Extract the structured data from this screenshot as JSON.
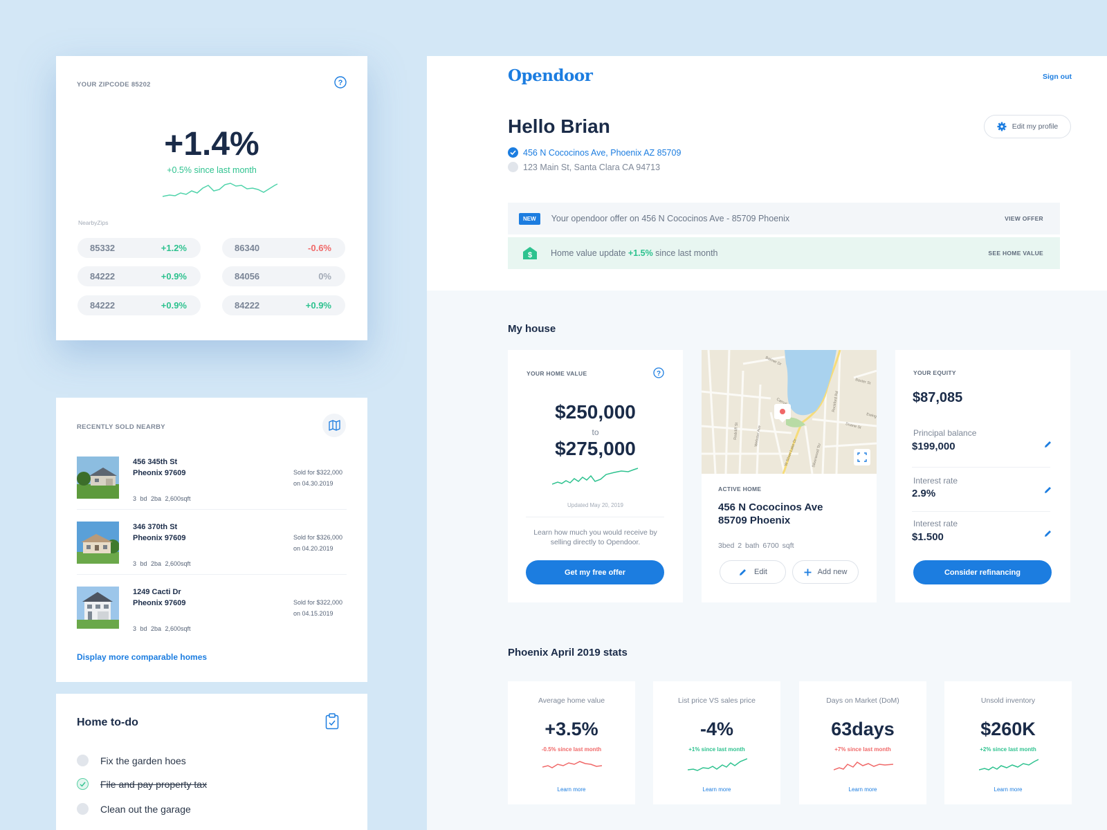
{
  "zipcode": {
    "label": "YOUR ZIPCODE 85202",
    "change": "+1.4%",
    "since": "+0.5% since last month",
    "nearby_label": "NearbyZips",
    "nearby": [
      {
        "code": "85332",
        "change": "+1.2%",
        "status": "up"
      },
      {
        "code": "86340",
        "change": "-0.6%",
        "status": "down"
      },
      {
        "code": "84222",
        "change": "+0.9%",
        "status": "up"
      },
      {
        "code": "84056",
        "change": "0%",
        "status": "flat"
      },
      {
        "code": "84222",
        "change": "+0.9%",
        "status": "up"
      },
      {
        "code": "84222",
        "change": "+0.9%",
        "status": "up"
      }
    ]
  },
  "sold": {
    "title": "RECENTLY SOLD NEARBY",
    "items": [
      {
        "street": "456 345th St",
        "city": "Pheonix 97609",
        "price": "Sold for $322,000",
        "date": "on 04.30.2019",
        "meta": "3 bd  2ba  2,600sqft"
      },
      {
        "street": "346 370th St",
        "city": "Pheonix 97609",
        "price": "Sold for $326,000",
        "date": "on 04.20.2019",
        "meta": "3 bd  2ba  2,600sqft"
      },
      {
        "street": "1249 Cacti Dr",
        "city": "Pheonix 97609",
        "price": "Sold for $322,000",
        "date": "on 04.15.2019",
        "meta": "3 bd  2ba  2,600sqft"
      }
    ],
    "more_link": "Display more comparable homes"
  },
  "todo": {
    "title": "Home to-do",
    "items": [
      {
        "text": "Fix the garden hoes",
        "done": false
      },
      {
        "text": "File and pay property tax",
        "done": true
      },
      {
        "text": "Clean out the garage",
        "done": false
      }
    ]
  },
  "header": {
    "logo": "Opendoor",
    "signout": "Sign out",
    "greeting": "Hello Brian",
    "edit_profile": "Edit my profile",
    "addresses": [
      {
        "text": "456 N Cococinos Ave, Phoenix AZ 85709",
        "selected": true
      },
      {
        "text": "123 Main St, Santa Clara CA 94713",
        "selected": false
      }
    ]
  },
  "notices": {
    "offer_badge": "NEW",
    "offer_text": "Your opendoor offer on 456 N Cococinos Ave - 85709 Phoenix",
    "offer_action": "VIEW OFFER",
    "value_text_before": "Home value update",
    "value_change": "+1.5%",
    "value_text_after": "since last month",
    "value_action": "SEE HOME VALUE"
  },
  "my_house": {
    "title": "My house",
    "home_value": {
      "label": "YOUR HOME VALUE",
      "low": "$250,000",
      "to": "to",
      "high": "$275,000",
      "updated": "Updated May 20, 2019",
      "description": "Learn how much you would receive by selling directly to Opendoor.",
      "button": "Get my free offer"
    },
    "map": {
      "streets": [
        "Balmer Dr",
        "Baxter St",
        "Duane St",
        "Rockford Rd",
        "Carroll St",
        "Webster Ave",
        "W Silver Lake Dr",
        "Redcliff St",
        "Silverwood Ter",
        "Ewing"
      ]
    },
    "active_home": {
      "label": "ACTIVE HOME",
      "line1": "456 N Cococinos Ave",
      "line2": "85709 Phoenix",
      "meta": "3bed  2 bath  6700 sqft",
      "edit": "Edit",
      "add": "Add new"
    },
    "equity": {
      "label": "YOUR EQUITY",
      "value": "$87,085",
      "rows": [
        {
          "label": "Principal balance",
          "value": "$199,000"
        },
        {
          "label": "Interest rate",
          "value": "2.9%"
        },
        {
          "label": "Interest rate",
          "value": "$1.500"
        }
      ],
      "button": "Consider refinancing"
    }
  },
  "stats": {
    "title": "Phoenix April 2019 stats",
    "items": [
      {
        "label": "Average home value",
        "value": "+3.5%",
        "change": "-0.5% since last month",
        "trend": "down",
        "link": "Learn more"
      },
      {
        "label": "List price VS sales price",
        "value": "-4%",
        "change": "+1% since last month",
        "trend": "up",
        "link": "Learn more"
      },
      {
        "label": "Days on Market (DoM)",
        "value": "63days",
        "change": "+7% since last month",
        "trend": "down",
        "link": "Learn more"
      },
      {
        "label": "Unsold inventory",
        "value": "$260K",
        "change": "+2% since last month",
        "trend": "up",
        "link": "Learn more"
      }
    ]
  },
  "colors": {
    "accent": "#1c7de0",
    "positive": "#2ec28f",
    "negative": "#f06868",
    "background": "#d3e7f6"
  }
}
